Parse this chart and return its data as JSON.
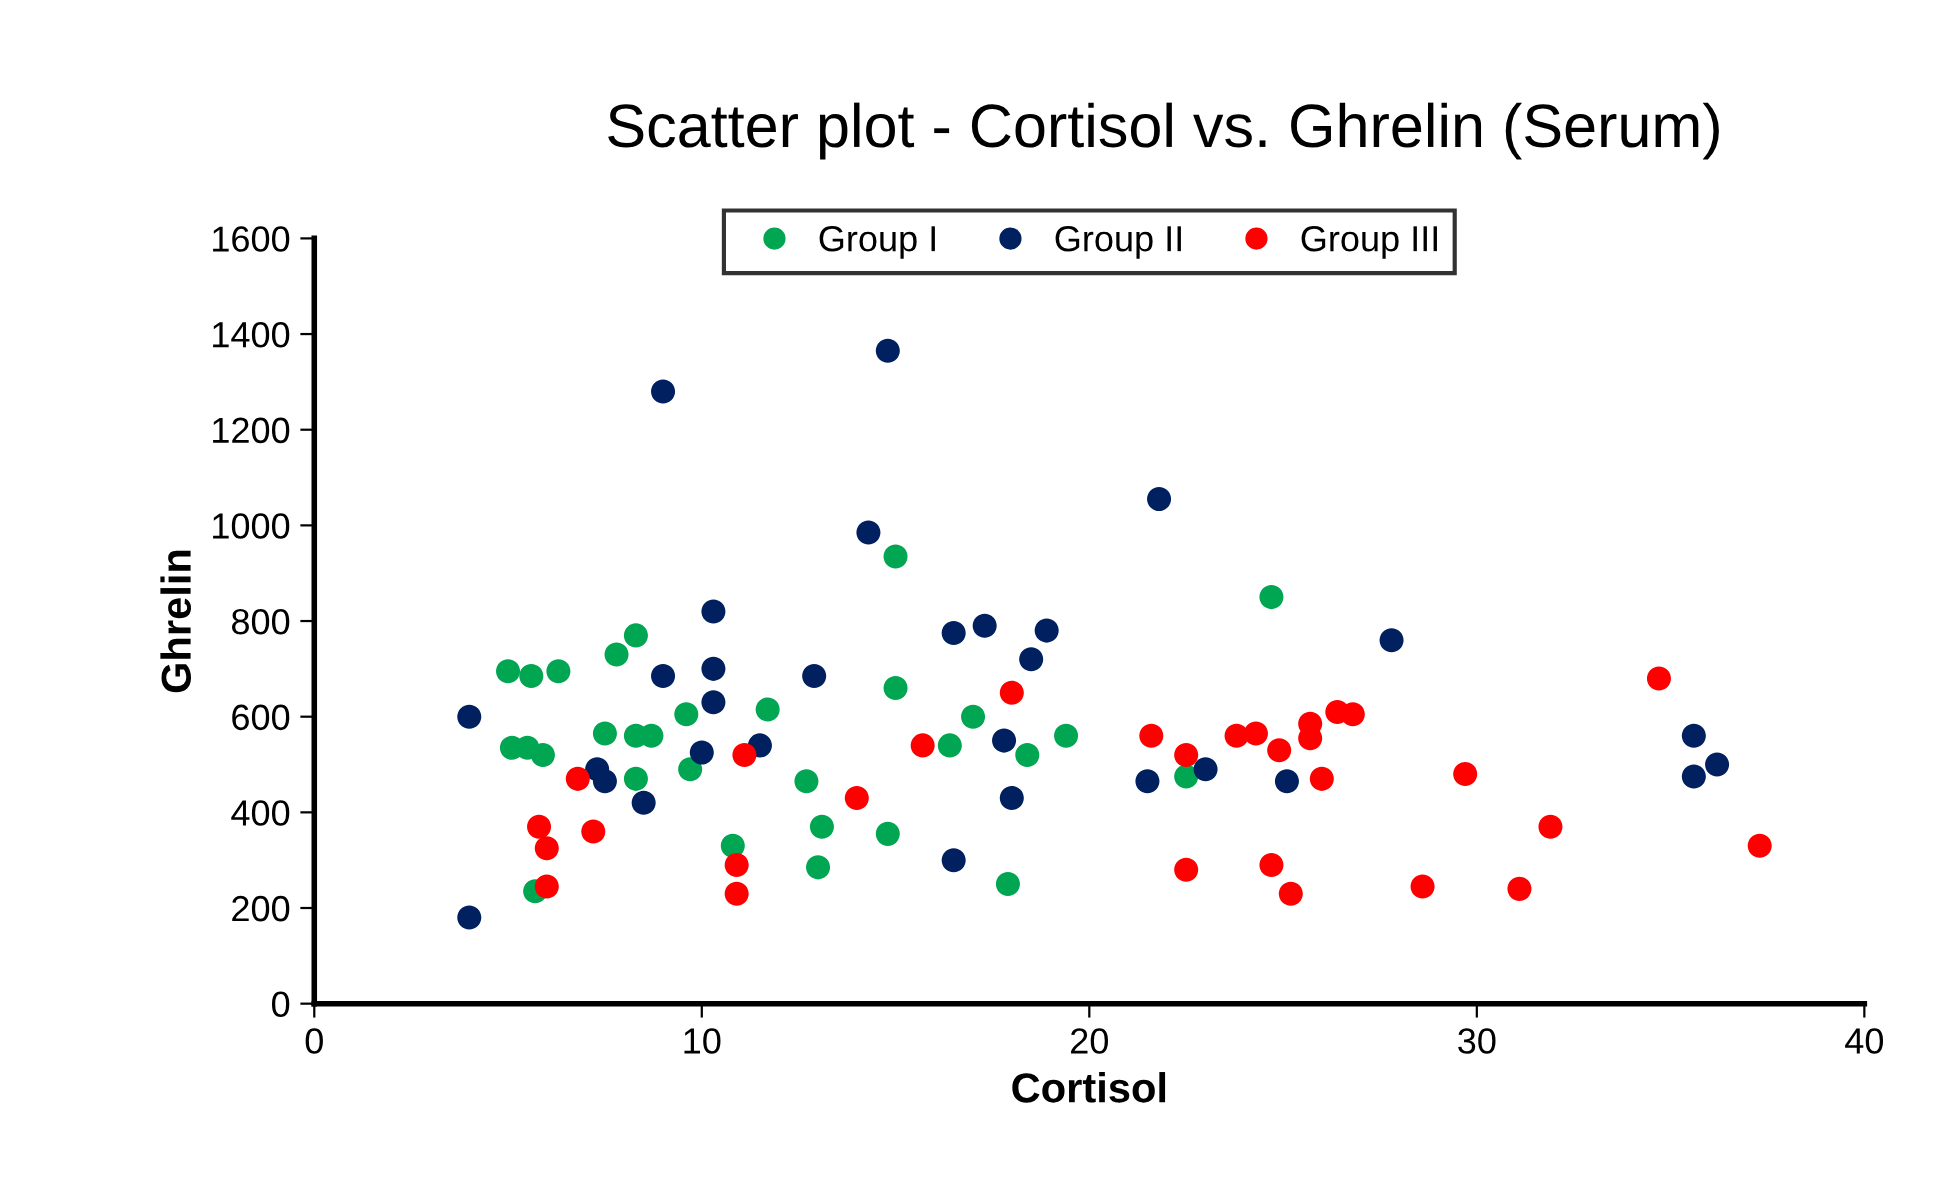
{
  "chart_data": {
    "type": "scatter",
    "title": "Scatter plot - Cortisol vs. Ghrelin (Serum)",
    "xlabel": "Cortisol",
    "ylabel": "Ghrelin",
    "xlim": [
      0,
      40
    ],
    "xticks": [
      0,
      10,
      20,
      30,
      40
    ],
    "ylim": [
      0,
      1600
    ],
    "yticks": [
      0,
      200,
      400,
      600,
      800,
      1000,
      1200,
      1400,
      1600
    ],
    "grid": false,
    "legend": "top",
    "marker": "circle",
    "series": [
      {
        "name": "Group I",
        "color": "#00a651",
        "x": [
          5.0,
          5.6,
          6.3,
          5.1,
          5.5,
          5.9,
          5.7,
          7.5,
          7.8,
          8.3,
          8.3,
          8.7,
          8.3,
          9.6,
          9.7,
          11.7,
          10.8,
          12.7,
          13.1,
          13.0,
          14.8,
          15.0,
          15.0,
          16.4,
          17.0,
          17.9,
          18.4,
          19.4,
          24.7,
          22.5
        ],
        "values": [
          695,
          685,
          695,
          535,
          535,
          520,
          235,
          565,
          730,
          770,
          560,
          560,
          470,
          605,
          490,
          615,
          330,
          465,
          370,
          285,
          355,
          935,
          660,
          540,
          600,
          250,
          520,
          560,
          850,
          475
        ]
      },
      {
        "name": "Group II",
        "color": "#002060",
        "x": [
          4.0,
          4.0,
          7.3,
          7.5,
          8.5,
          9.0,
          9.0,
          10.0,
          10.3,
          10.3,
          10.3,
          11.5,
          12.9,
          14.3,
          14.8,
          16.5,
          17.3,
          16.5,
          17.8,
          18.0,
          18.5,
          18.9,
          21.8,
          21.5,
          23.0,
          25.1,
          27.8,
          35.6,
          35.6,
          36.2
        ],
        "values": [
          600,
          180,
          490,
          465,
          420,
          1280,
          685,
          525,
          820,
          700,
          630,
          540,
          685,
          985,
          1365,
          775,
          790,
          300,
          550,
          430,
          720,
          780,
          1055,
          465,
          490,
          465,
          760,
          560,
          475,
          500
        ]
      },
      {
        "name": "Group III",
        "color": "#ff0000",
        "x": [
          6.8,
          7.2,
          5.8,
          6.0,
          6.0,
          11.1,
          10.9,
          10.9,
          14.0,
          15.7,
          18.0,
          21.6,
          22.5,
          22.5,
          23.8,
          24.3,
          24.9,
          24.7,
          25.2,
          25.7,
          25.7,
          26.0,
          26.4,
          26.8,
          28.6,
          29.7,
          31.9,
          31.1,
          34.7,
          37.3
        ],
        "values": [
          470,
          360,
          370,
          325,
          245,
          520,
          290,
          230,
          430,
          540,
          650,
          560,
          520,
          280,
          560,
          565,
          530,
          290,
          230,
          585,
          555,
          470,
          610,
          605,
          245,
          480,
          370,
          240,
          680,
          330
        ]
      }
    ]
  }
}
